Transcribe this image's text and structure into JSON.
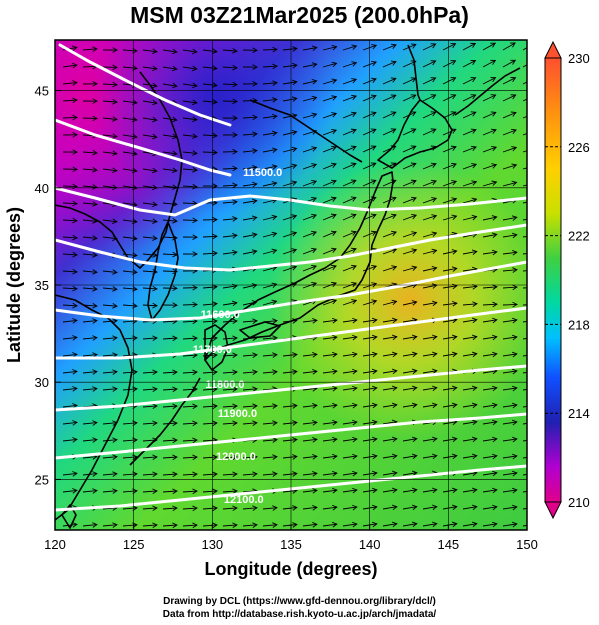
{
  "title": "MSM 03Z21Mar2025 (200.0hPa)",
  "map": {
    "xlabel": "Longitude (degrees)",
    "ylabel": "Latitude  (degrees)",
    "xlim": [
      120,
      150
    ],
    "ylim": [
      22.4,
      47.6
    ],
    "x_ticks": [
      "120",
      "125",
      "130",
      "135",
      "140",
      "145",
      "150"
    ],
    "y_ticks": [
      "25",
      "30",
      "35",
      "40",
      "45"
    ],
    "x_tick_values": [
      120,
      125,
      130,
      135,
      140,
      145,
      150
    ],
    "y_tick_values": [
      25,
      30,
      35,
      40,
      45
    ],
    "shading_field_range": [
      210,
      230
    ],
    "contour_labels": [
      {
        "text": "11500.0",
        "lon": 133.2,
        "lat": 40.6
      },
      {
        "text": "11600.0",
        "lon": 130.5,
        "lat": 33.3
      },
      {
        "text": "11700.0",
        "lon": 130.0,
        "lat": 31.5
      },
      {
        "text": "11800.0",
        "lon": 130.8,
        "lat": 29.7
      },
      {
        "text": "11900.0",
        "lon": 131.6,
        "lat": 28.2
      },
      {
        "text": "12000.0",
        "lon": 131.5,
        "lat": 26.0
      },
      {
        "text": "12100.0",
        "lon": 132.0,
        "lat": 23.8
      }
    ]
  },
  "colorbar": {
    "tick_labels": [
      "230",
      "226",
      "222",
      "218",
      "214",
      "210"
    ],
    "tick_values": [
      230,
      226,
      222,
      218,
      214,
      210
    ],
    "colors": [
      "#d7005f",
      "#b000d0",
      "#4020c8",
      "#1040ff",
      "#00b4ff",
      "#00e0b0",
      "#20d040",
      "#60d820",
      "#c8e000",
      "#ffd000",
      "#ff9010",
      "#ff5030"
    ]
  },
  "credits": {
    "line1": "Drawing by DCL (https://www.gfd-dennou.org/library/dcl/)",
    "line2": "Data from http://database.rish.kyoto-u.ac.jp/arch/jmadata/"
  }
}
